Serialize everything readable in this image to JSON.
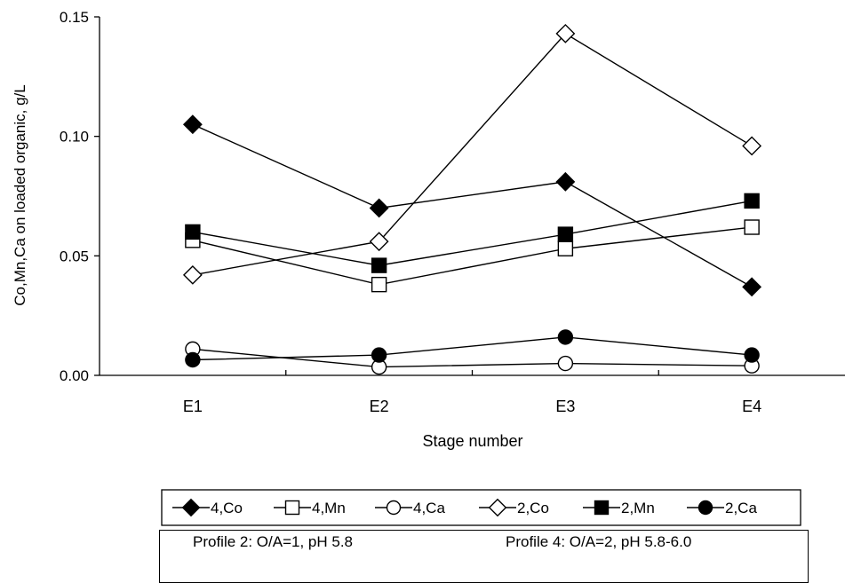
{
  "chart_data": {
    "type": "line",
    "categories": [
      "E1",
      "E2",
      "E3",
      "E4"
    ],
    "xlabel": "Stage number",
    "ylabel": "Co,Mn,Ca on loaded organic, g/L",
    "ylim": [
      0,
      0.15
    ],
    "yticks": [
      "0.00",
      "0.05",
      "0.10",
      "0.15"
    ],
    "grid": false,
    "legend_position": "bottom",
    "series": [
      {
        "name": "4,Co",
        "marker": "diamond",
        "filled": true,
        "values": [
          0.105,
          0.07,
          0.081,
          0.037
        ]
      },
      {
        "name": "4,Mn",
        "marker": "square",
        "filled": false,
        "values": [
          0.0565,
          0.038,
          0.053,
          0.062
        ]
      },
      {
        "name": "4,Ca",
        "marker": "circle",
        "filled": false,
        "values": [
          0.011,
          0.0035,
          0.005,
          0.004
        ]
      },
      {
        "name": "2,Co",
        "marker": "diamond",
        "filled": false,
        "values": [
          0.042,
          0.056,
          0.143,
          0.096
        ]
      },
      {
        "name": "2,Mn",
        "marker": "square",
        "filled": true,
        "values": [
          0.06,
          0.046,
          0.059,
          0.073
        ]
      },
      {
        "name": "2,Ca",
        "marker": "circle",
        "filled": true,
        "values": [
          0.0065,
          0.0085,
          0.016,
          0.0085
        ]
      }
    ],
    "line_color": "#000000",
    "marker_color": "#000000"
  },
  "notes": {
    "left": "Profile 2: O/A=1, pH 5.8",
    "right": "Profile 4: O/A=2, pH 5.8-6.0"
  }
}
